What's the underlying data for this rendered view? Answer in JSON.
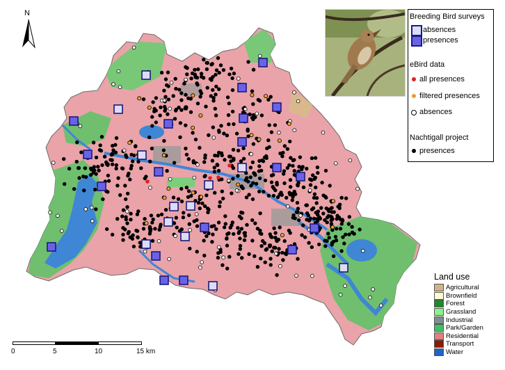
{
  "north_arrow": {
    "label": "N"
  },
  "photo": {
    "subject": "nightingale-photo"
  },
  "legend": {
    "breeding_title": "Breeding Bird surveys",
    "breeding_absences": "absences",
    "breeding_presences": "presences",
    "ebird_title": "eBird data",
    "ebird_all_presences": "all presences",
    "ebird_filtered_presences": "filtered presences",
    "ebird_absences": "absences",
    "nachtigall_title": "Nachtigall project",
    "nachtigall_presences": "presences"
  },
  "colors": {
    "residential": "#e9a3a9",
    "forest": "#5fb35f",
    "park": "#7ccd7c",
    "industrial": "#8e8e8e",
    "water": "#3f86d4",
    "agricultural": "#d9b98c",
    "breeding_absence": "#dcdcf5",
    "breeding_presence": "#6a62e6",
    "ebird_all": "#e02020",
    "ebird_filtered": "#e8a030",
    "nachtigall": "#000000"
  },
  "land_use": {
    "title": "Land use",
    "items": [
      {
        "label": "Agricultural",
        "color": "#d2b48c"
      },
      {
        "label": "Brownfield",
        "color": "#fbfbd6"
      },
      {
        "label": "Forest",
        "color": "#1f8a2a"
      },
      {
        "label": "Grassland",
        "color": "#8ef08e"
      },
      {
        "label": "Industrial",
        "color": "#7f8f8f"
      },
      {
        "label": "Park/Garden",
        "color": "#40c060"
      },
      {
        "label": "Residential",
        "color": "#e37f7f"
      },
      {
        "label": "Transport",
        "color": "#8b1a00"
      },
      {
        "label": "Water",
        "color": "#1e64c8"
      }
    ]
  },
  "scale_bar": {
    "ticks": [
      "0",
      "5",
      "10",
      "15 km"
    ]
  }
}
